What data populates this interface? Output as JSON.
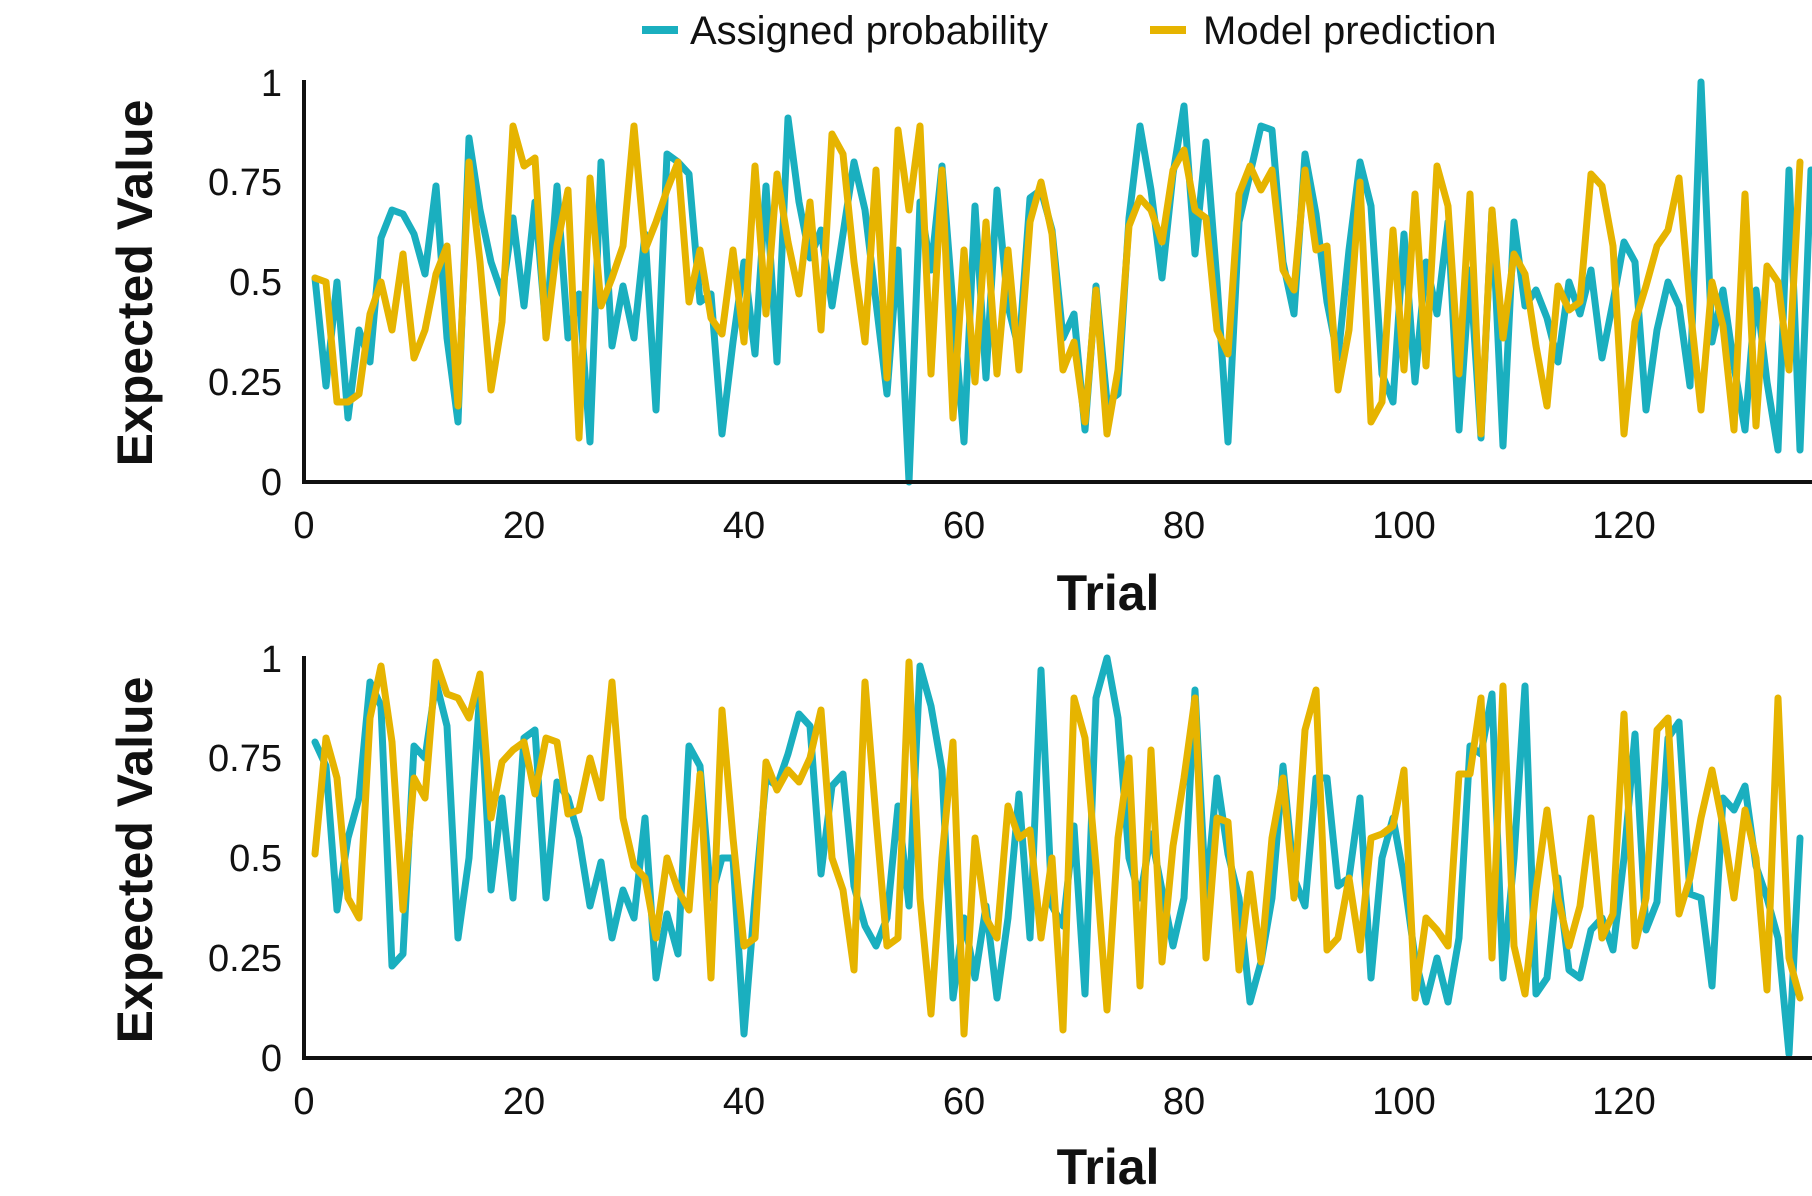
{
  "legend": {
    "items": [
      {
        "label": "Assigned probability",
        "color": "#1AAFBF"
      },
      {
        "label": "Model prediction",
        "color": "#E6B400"
      }
    ]
  },
  "chart_data": [
    {
      "type": "line",
      "xlabel": "Trial",
      "ylabel": "Expected Value",
      "xlim": [
        0,
        140
      ],
      "ylim": [
        0,
        1
      ],
      "xticks": [
        "0",
        "20",
        "40",
        "60",
        "80",
        "100",
        "120",
        "140"
      ],
      "yticks": [
        "0",
        "0.25",
        "0.5",
        "0.75",
        "1"
      ],
      "grid": false,
      "legend_position": "top-center",
      "series": [
        {
          "name": "Assigned probability",
          "values": [
            0.51,
            0.24,
            0.5,
            0.16,
            0.38,
            0.3,
            0.61,
            0.68,
            0.67,
            0.62,
            0.52,
            0.74,
            0.36,
            0.15,
            0.86,
            0.68,
            0.55,
            0.47,
            0.66,
            0.44,
            0.7,
            0.38,
            0.74,
            0.36,
            0.47,
            0.1,
            0.8,
            0.34,
            0.49,
            0.36,
            0.62,
            0.18,
            0.82,
            0.8,
            0.77,
            0.45,
            0.47,
            0.12,
            0.35,
            0.55,
            0.32,
            0.74,
            0.3,
            0.91,
            0.7,
            0.56,
            0.63,
            0.44,
            0.62,
            0.8,
            0.68,
            0.45,
            0.22,
            0.58,
            0.0,
            0.7,
            0.53,
            0.79,
            0.44,
            0.1,
            0.69,
            0.26,
            0.73,
            0.44,
            0.33,
            0.71,
            0.73,
            0.63,
            0.36,
            0.42,
            0.13,
            0.49,
            0.2,
            0.22,
            0.66,
            0.89,
            0.73,
            0.51,
            0.77,
            0.94,
            0.57,
            0.85,
            0.5,
            0.1,
            0.65,
            0.77,
            0.89,
            0.88,
            0.55,
            0.42,
            0.82,
            0.67,
            0.45,
            0.31,
            0.58,
            0.8,
            0.69,
            0.27,
            0.2,
            0.62,
            0.25,
            0.55,
            0.42,
            0.65,
            0.13,
            0.53,
            0.11,
            0.68,
            0.09,
            0.65,
            0.44,
            0.48,
            0.41,
            0.3,
            0.5,
            0.42,
            0.53,
            0.31,
            0.45,
            0.6,
            0.55,
            0.18,
            0.38,
            0.5,
            0.44,
            0.24,
            1.0,
            0.35,
            0.48,
            0.29,
            0.13,
            0.48,
            0.25,
            0.08,
            0.78,
            0.08,
            0.78
          ]
        },
        {
          "name": "Model prediction",
          "values": [
            0.51,
            0.5,
            0.2,
            0.2,
            0.22,
            0.42,
            0.5,
            0.38,
            0.57,
            0.31,
            0.38,
            0.52,
            0.59,
            0.19,
            0.8,
            0.55,
            0.23,
            0.4,
            0.89,
            0.79,
            0.81,
            0.36,
            0.59,
            0.73,
            0.11,
            0.76,
            0.44,
            0.51,
            0.59,
            0.89,
            0.58,
            0.65,
            0.73,
            0.8,
            0.45,
            0.58,
            0.41,
            0.37,
            0.58,
            0.35,
            0.79,
            0.42,
            0.77,
            0.6,
            0.47,
            0.7,
            0.38,
            0.87,
            0.82,
            0.55,
            0.35,
            0.78,
            0.26,
            0.88,
            0.68,
            0.89,
            0.27,
            0.78,
            0.16,
            0.58,
            0.25,
            0.65,
            0.27,
            0.58,
            0.28,
            0.65,
            0.75,
            0.62,
            0.28,
            0.35,
            0.15,
            0.48,
            0.12,
            0.28,
            0.64,
            0.71,
            0.68,
            0.6,
            0.78,
            0.83,
            0.68,
            0.66,
            0.38,
            0.32,
            0.72,
            0.79,
            0.73,
            0.78,
            0.53,
            0.48,
            0.78,
            0.58,
            0.59,
            0.23,
            0.38,
            0.75,
            0.15,
            0.2,
            0.63,
            0.28,
            0.72,
            0.29,
            0.79,
            0.69,
            0.27,
            0.72,
            0.12,
            0.68,
            0.36,
            0.57,
            0.52,
            0.34,
            0.19,
            0.49,
            0.43,
            0.45,
            0.77,
            0.74,
            0.59,
            0.12,
            0.4,
            0.49,
            0.59,
            0.63,
            0.76,
            0.44,
            0.18,
            0.5,
            0.39,
            0.13,
            0.72,
            0.14,
            0.54,
            0.5,
            0.28,
            0.8
          ]
        }
      ]
    },
    {
      "type": "line",
      "xlabel": "Trial",
      "ylabel": "Expected Value",
      "xlim": [
        0,
        140
      ],
      "ylim": [
        0,
        1
      ],
      "xticks": [
        "0",
        "20",
        "40",
        "60",
        "80",
        "100",
        "120",
        "140"
      ],
      "yticks": [
        "0",
        "0.25",
        "0.5",
        "0.75",
        "1"
      ],
      "grid": false,
      "legend_position": "top-center",
      "series": [
        {
          "name": "Assigned probability",
          "values": [
            0.79,
            0.73,
            0.37,
            0.55,
            0.65,
            0.94,
            0.88,
            0.23,
            0.26,
            0.78,
            0.75,
            0.94,
            0.83,
            0.3,
            0.5,
            0.92,
            0.42,
            0.65,
            0.4,
            0.8,
            0.82,
            0.4,
            0.69,
            0.65,
            0.55,
            0.38,
            0.49,
            0.3,
            0.42,
            0.35,
            0.6,
            0.2,
            0.36,
            0.26,
            0.78,
            0.73,
            0.4,
            0.5,
            0.5,
            0.06,
            0.4,
            0.7,
            0.68,
            0.76,
            0.86,
            0.83,
            0.46,
            0.68,
            0.71,
            0.43,
            0.33,
            0.28,
            0.35,
            0.63,
            0.38,
            0.98,
            0.88,
            0.72,
            0.15,
            0.35,
            0.2,
            0.38,
            0.15,
            0.35,
            0.66,
            0.3,
            0.97,
            0.38,
            0.33,
            0.58,
            0.16,
            0.9,
            1.0,
            0.85,
            0.5,
            0.4,
            0.56,
            0.42,
            0.28,
            0.4,
            0.92,
            0.4,
            0.7,
            0.51,
            0.4,
            0.14,
            0.24,
            0.4,
            0.73,
            0.45,
            0.38,
            0.7,
            0.7,
            0.43,
            0.45,
            0.65,
            0.2,
            0.5,
            0.6,
            0.45,
            0.25,
            0.14,
            0.25,
            0.14,
            0.3,
            0.78,
            0.76,
            0.91,
            0.2,
            0.5,
            0.93,
            0.16,
            0.2,
            0.45,
            0.22,
            0.2,
            0.32,
            0.35,
            0.27,
            0.5,
            0.81,
            0.32,
            0.39,
            0.8,
            0.84,
            0.41,
            0.4,
            0.18,
            0.65,
            0.62,
            0.68,
            0.48,
            0.4,
            0.3,
            0.01,
            0.55
          ]
        },
        {
          "name": "Model prediction",
          "values": [
            0.51,
            0.8,
            0.7,
            0.4,
            0.35,
            0.85,
            0.98,
            0.79,
            0.37,
            0.7,
            0.65,
            0.99,
            0.91,
            0.9,
            0.85,
            0.96,
            0.6,
            0.74,
            0.77,
            0.79,
            0.66,
            0.8,
            0.79,
            0.61,
            0.62,
            0.75,
            0.65,
            0.94,
            0.6,
            0.48,
            0.45,
            0.3,
            0.5,
            0.42,
            0.37,
            0.71,
            0.2,
            0.87,
            0.55,
            0.28,
            0.3,
            0.74,
            0.67,
            0.72,
            0.69,
            0.75,
            0.87,
            0.5,
            0.42,
            0.22,
            0.94,
            0.6,
            0.28,
            0.3,
            0.99,
            0.4,
            0.11,
            0.5,
            0.79,
            0.06,
            0.55,
            0.35,
            0.3,
            0.63,
            0.55,
            0.57,
            0.3,
            0.5,
            0.07,
            0.9,
            0.8,
            0.48,
            0.12,
            0.55,
            0.75,
            0.18,
            0.77,
            0.24,
            0.53,
            0.7,
            0.9,
            0.25,
            0.6,
            0.59,
            0.22,
            0.46,
            0.24,
            0.55,
            0.7,
            0.4,
            0.82,
            0.92,
            0.27,
            0.3,
            0.45,
            0.27,
            0.55,
            0.56,
            0.58,
            0.72,
            0.15,
            0.35,
            0.32,
            0.28,
            0.71,
            0.71,
            0.9,
            0.25,
            0.93,
            0.28,
            0.16,
            0.42,
            0.62,
            0.4,
            0.28,
            0.38,
            0.6,
            0.3,
            0.36,
            0.86,
            0.28,
            0.4,
            0.82,
            0.85,
            0.36,
            0.45,
            0.6,
            0.72,
            0.58,
            0.4,
            0.62,
            0.5,
            0.17,
            0.9,
            0.25,
            0.15
          ]
        }
      ]
    }
  ]
}
